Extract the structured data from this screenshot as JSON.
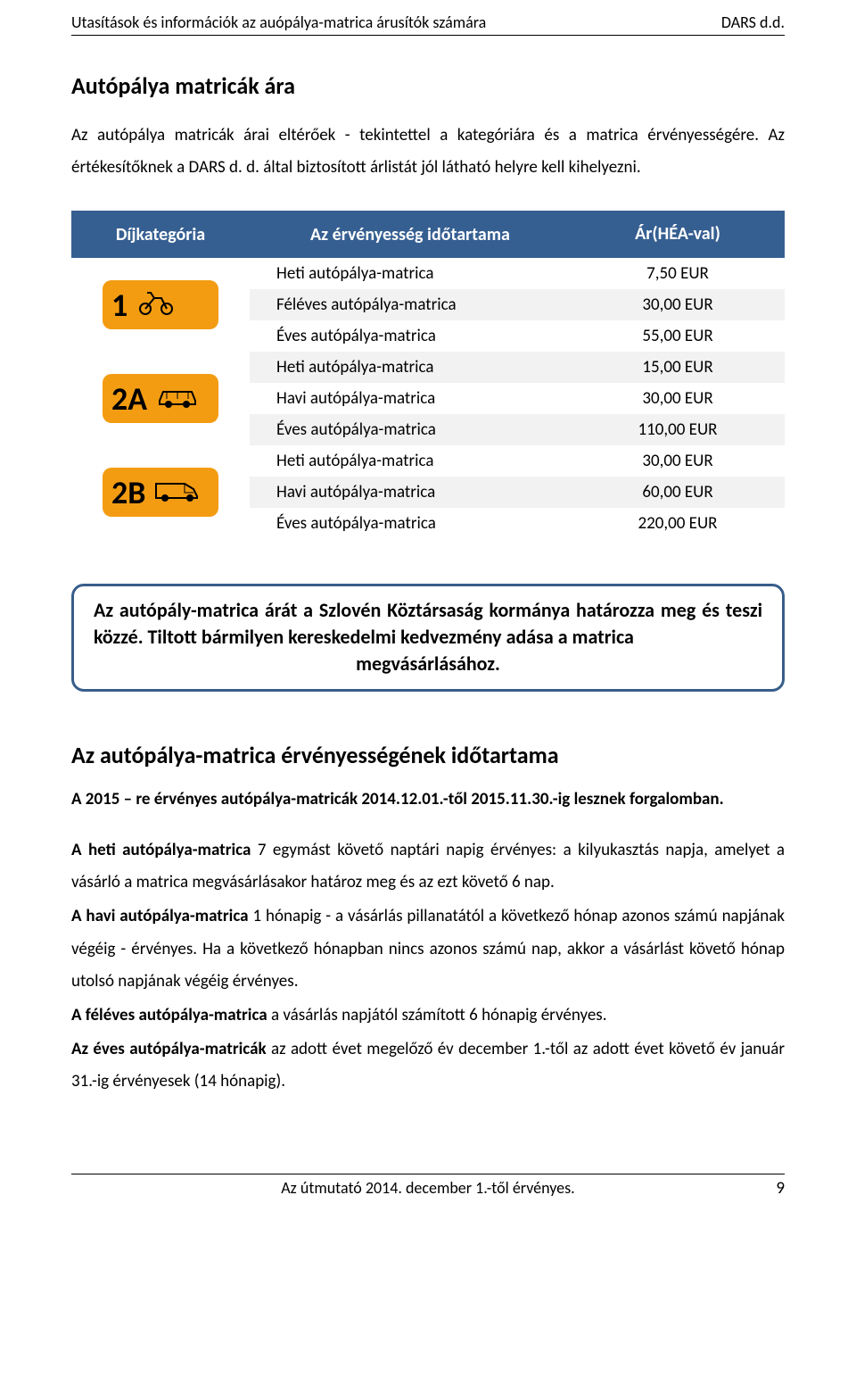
{
  "header": {
    "left": "Utasítások és információk az auópálya-matrica árusítók számára",
    "right": "DARS d.d."
  },
  "title1": "Autópálya matricák ára",
  "intro": "Az autópálya matricák árai eltérőek - tekintettel a kategóriára és a matrica érvényességére. Az értékesítőknek a DARS d. d. által biztosított árlistát jól látható helyre kell kihelyezni.",
  "table": {
    "headers": {
      "cat": "Díjkategória",
      "dur": "Az érvényesség időtartama",
      "price": "Ár\n(HÉA-val)"
    },
    "header_bg": "#365f91",
    "header_fg": "#ffffff",
    "row_alt_bg": "#f2f2f2",
    "badge_bg": "#f39c12",
    "badge_fg": "#000000",
    "groups": [
      {
        "badge": "1",
        "icon": "motorcycle",
        "rows": [
          {
            "dur": "Heti autópálya-matrica",
            "price": "7,50 EUR"
          },
          {
            "dur": "Féléves autópálya-matrica",
            "price": "30,00 EUR"
          },
          {
            "dur": "Éves autópálya-matrica",
            "price": "55,00 EUR"
          }
        ]
      },
      {
        "badge": "2A",
        "icon": "car",
        "rows": [
          {
            "dur": "Heti autópálya-matrica",
            "price": "15,00 EUR"
          },
          {
            "dur": "Havi autópálya-matrica",
            "price": "30,00 EUR"
          },
          {
            "dur": "Éves autópálya-matrica",
            "price": "110,00 EUR"
          }
        ]
      },
      {
        "badge": "2B",
        "icon": "van",
        "rows": [
          {
            "dur": "Heti autópálya-matrica",
            "price": "30,00 EUR"
          },
          {
            "dur": "Havi autópálya-matrica",
            "price": "60,00 EUR"
          },
          {
            "dur": "Éves autópálya-matrica",
            "price": "220,00 EUR"
          }
        ]
      }
    ]
  },
  "callout": {
    "border": "#385d8a",
    "line1": "Az autópály-matrica árát a Szlovén Köztársaság kormánya határozza meg és teszi közzé. Tiltott bármilyen kereskedelmi kedvezmény adása a matrica",
    "line2": "megvásárlásához."
  },
  "title2": "Az autópálya-matrica érvényességének időtartama",
  "lead": "A 2015 – re érvényes autópálya-matricák 2014.12.01.-től 2015.11.30.-ig lesznek forgalomban.",
  "paras": {
    "p1_b": "A heti autópálya-matrica",
    "p1": " 7 egymást követő naptári napig érvényes: a kilyukasztás napja, amelyet a vásárló a matrica megvásárlásakor határoz meg és az ezt követő 6 nap.",
    "p2_b": "A havi autópálya-matrica",
    "p2": " 1 hónapig - a vásárlás pillanatától a következő hónap azonos számú napjának végéig - érvényes. Ha a következő hónapban nincs azonos számú nap, akkor a vásárlást követő hónap utolsó napjának végéig érvényes.",
    "p3_b": "A féléves autópálya-matrica",
    "p3": " a vásárlás napjától számított 6 hónapig érvényes.",
    "p4_b": "Az éves autópálya-matricák",
    "p4": " az adott évet megelőző év december 1.-től az adott évet követő év január 31.-ig érvényesek (14 hónapig)."
  },
  "footer": {
    "center": "Az útmutató  2014. december 1.-től érvényes.",
    "page": "9"
  }
}
